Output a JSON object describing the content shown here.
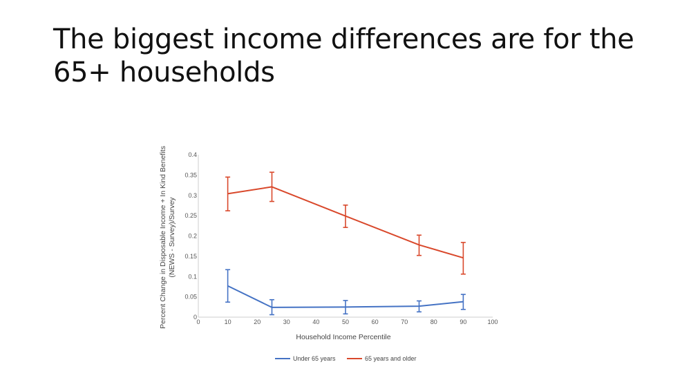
{
  "slide": {
    "title": "The biggest income differences are for the 65+ households"
  },
  "chart_data": {
    "type": "line",
    "title": "",
    "xlabel": "Household Income Percentile",
    "ylabel_lines": [
      "Percent Change in Disposable Income + In Kind Benefits",
      "(NEWS - Survey)/Survey"
    ],
    "xlim": [
      0,
      100
    ],
    "ylim": [
      0,
      0.4
    ],
    "x_ticks": [
      "0",
      "10",
      "20",
      "30",
      "40",
      "50",
      "60",
      "70",
      "80",
      "90",
      "100"
    ],
    "y_ticks": [
      "0",
      "0.05",
      "0.1",
      "0.15",
      "0.2",
      "0.25",
      "0.3",
      "0.35",
      "0.4"
    ],
    "grid": false,
    "legend_position": "bottom",
    "series": [
      {
        "name": "Under 65 years",
        "color": "#4472C4",
        "x": [
          10,
          25,
          50,
          75,
          90
        ],
        "values": [
          0.077,
          0.024,
          0.025,
          0.027,
          0.038
        ],
        "err_low": [
          0.037,
          0.006,
          0.008,
          0.013,
          0.019
        ],
        "err_high": [
          0.117,
          0.043,
          0.041,
          0.04,
          0.056
        ]
      },
      {
        "name": "65 years and older",
        "color": "#D9482B",
        "x": [
          10,
          25,
          50,
          75,
          90
        ],
        "values": [
          0.304,
          0.321,
          0.249,
          0.178,
          0.146
        ],
        "err_low": [
          0.262,
          0.285,
          0.221,
          0.152,
          0.106
        ],
        "err_high": [
          0.345,
          0.357,
          0.276,
          0.202,
          0.184
        ]
      }
    ]
  }
}
